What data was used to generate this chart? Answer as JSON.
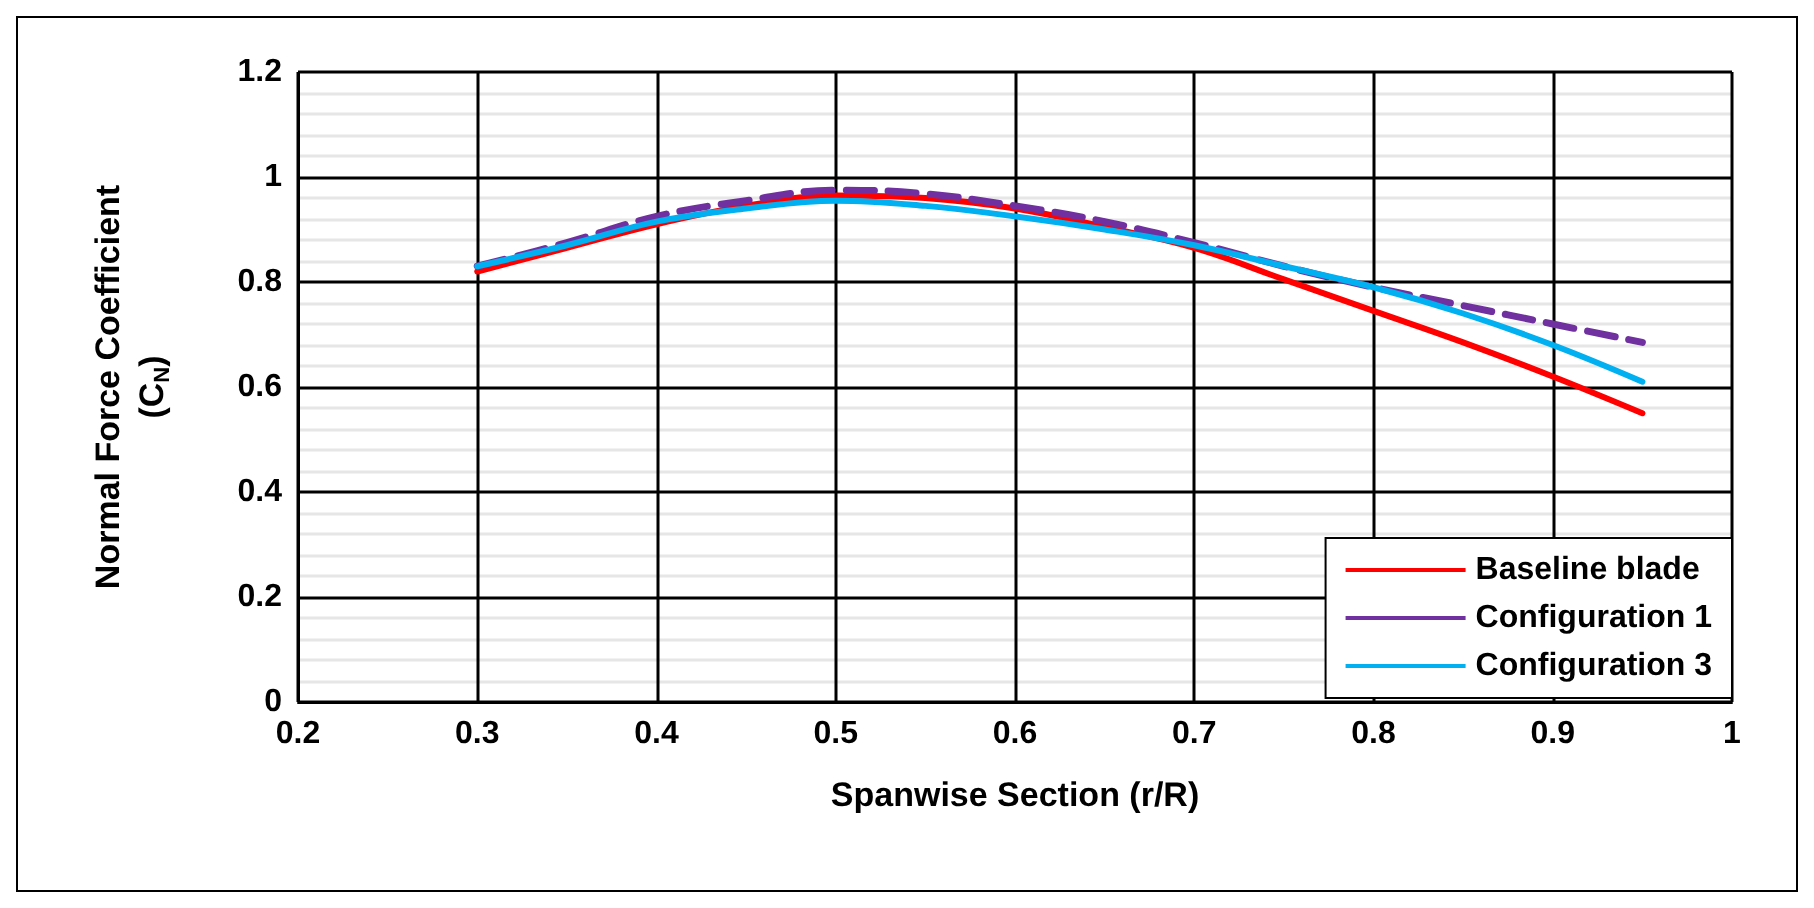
{
  "chart_data": {
    "type": "line",
    "xlabel": "Spanwise Section (r/R)",
    "ylabel": "Normal Force Coefficient (C$_{N}$)",
    "x": [
      0.3,
      0.35,
      0.4,
      0.45,
      0.5,
      0.55,
      0.6,
      0.65,
      0.7,
      0.75,
      0.8,
      0.85,
      0.9,
      0.95
    ],
    "series": [
      {
        "name": "Baseline blade",
        "color": "#ff0000",
        "line_style": "solid",
        "values": [
          0.82,
          0.865,
          0.91,
          0.945,
          0.965,
          0.96,
          0.94,
          0.905,
          0.865,
          0.805,
          0.745,
          0.685,
          0.62,
          0.55
        ]
      },
      {
        "name": "Configuration 1",
        "color": "#7030a0",
        "line_style": "dashed",
        "values": [
          0.83,
          0.875,
          0.925,
          0.955,
          0.975,
          0.968,
          0.945,
          0.915,
          0.875,
          0.83,
          0.79,
          0.755,
          0.72,
          0.685
        ]
      },
      {
        "name": "Configuration 3",
        "color": "#00b0f0",
        "line_style": "solid",
        "values": [
          0.83,
          0.87,
          0.915,
          0.94,
          0.955,
          0.945,
          0.925,
          0.9,
          0.87,
          0.83,
          0.79,
          0.74,
          0.68,
          0.61
        ]
      }
    ],
    "xlim": [
      0.2,
      1
    ],
    "xticks": [
      0.2,
      0.3,
      0.4,
      0.5,
      0.6,
      0.7,
      0.8,
      0.9,
      1
    ],
    "ylim": [
      0,
      1.2
    ],
    "yticks": [
      0,
      0.2,
      0.4,
      0.6,
      0.8,
      1,
      1.2
    ],
    "grid": true,
    "legend": "bottom right",
    "marker": "none"
  }
}
